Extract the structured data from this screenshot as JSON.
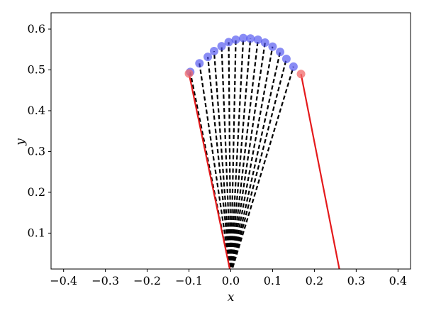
{
  "chart_data": {
    "type": "line",
    "title": "",
    "xlabel": "x",
    "ylabel": "y",
    "xlim": [
      -0.43,
      0.43
    ],
    "ylim": [
      0.012,
      0.64
    ],
    "grid": false,
    "legend": "none",
    "xticks": [
      {
        "value": -0.4,
        "label": "−0.4"
      },
      {
        "value": -0.3,
        "label": "−0.3"
      },
      {
        "value": -0.2,
        "label": "−0.2"
      },
      {
        "value": -0.1,
        "label": "−0.1"
      },
      {
        "value": 0.0,
        "label": "0.0"
      },
      {
        "value": 0.1,
        "label": "0.1"
      },
      {
        "value": 0.2,
        "label": "0.2"
      },
      {
        "value": 0.3,
        "label": "0.3"
      },
      {
        "value": 0.4,
        "label": "0.4"
      }
    ],
    "yticks": [
      {
        "value": 0.1,
        "label": "0.1"
      },
      {
        "value": 0.2,
        "label": "0.2"
      },
      {
        "value": 0.3,
        "label": "0.3"
      },
      {
        "value": 0.4,
        "label": "0.4"
      },
      {
        "value": 0.5,
        "label": "0.5"
      },
      {
        "value": 0.6,
        "label": "0.6"
      }
    ],
    "origin": {
      "x": 0.0,
      "y": 0.0
    },
    "dashed_rays": {
      "color": "#000000",
      "style": "dashed",
      "endpoints": [
        {
          "x": -0.097,
          "y": 0.495
        },
        {
          "x": -0.075,
          "y": 0.516
        },
        {
          "x": -0.055,
          "y": 0.532
        },
        {
          "x": -0.04,
          "y": 0.546
        },
        {
          "x": -0.022,
          "y": 0.558
        },
        {
          "x": -0.005,
          "y": 0.568
        },
        {
          "x": 0.012,
          "y": 0.574
        },
        {
          "x": 0.03,
          "y": 0.578
        },
        {
          "x": 0.047,
          "y": 0.577
        },
        {
          "x": 0.065,
          "y": 0.574
        },
        {
          "x": 0.082,
          "y": 0.567
        },
        {
          "x": 0.1,
          "y": 0.557
        },
        {
          "x": 0.118,
          "y": 0.544
        },
        {
          "x": 0.133,
          "y": 0.527
        },
        {
          "x": 0.15,
          "y": 0.508
        }
      ]
    },
    "blue_points": {
      "color": "#4a4ef0",
      "points": [
        {
          "x": -0.097,
          "y": 0.495
        },
        {
          "x": -0.075,
          "y": 0.516
        },
        {
          "x": -0.055,
          "y": 0.532
        },
        {
          "x": -0.04,
          "y": 0.546
        },
        {
          "x": -0.022,
          "y": 0.558
        },
        {
          "x": -0.005,
          "y": 0.568
        },
        {
          "x": 0.012,
          "y": 0.574
        },
        {
          "x": 0.03,
          "y": 0.578
        },
        {
          "x": 0.047,
          "y": 0.577
        },
        {
          "x": 0.065,
          "y": 0.574
        },
        {
          "x": 0.082,
          "y": 0.567
        },
        {
          "x": 0.1,
          "y": 0.557
        },
        {
          "x": 0.118,
          "y": 0.544
        },
        {
          "x": 0.133,
          "y": 0.527
        },
        {
          "x": 0.15,
          "y": 0.508
        }
      ]
    },
    "red_lines": {
      "color": "#e41a1c",
      "segments": [
        {
          "from": {
            "x": -0.1,
            "y": 0.491
          },
          "to": {
            "x": 0.0,
            "y": 0.0
          }
        },
        {
          "from": {
            "x": 0.168,
            "y": 0.49
          },
          "to": {
            "x": 0.262,
            "y": 0.0
          }
        }
      ]
    },
    "red_points": {
      "color": "#f26b6b",
      "points": [
        {
          "x": -0.1,
          "y": 0.491
        },
        {
          "x": 0.168,
          "y": 0.49
        }
      ]
    }
  }
}
